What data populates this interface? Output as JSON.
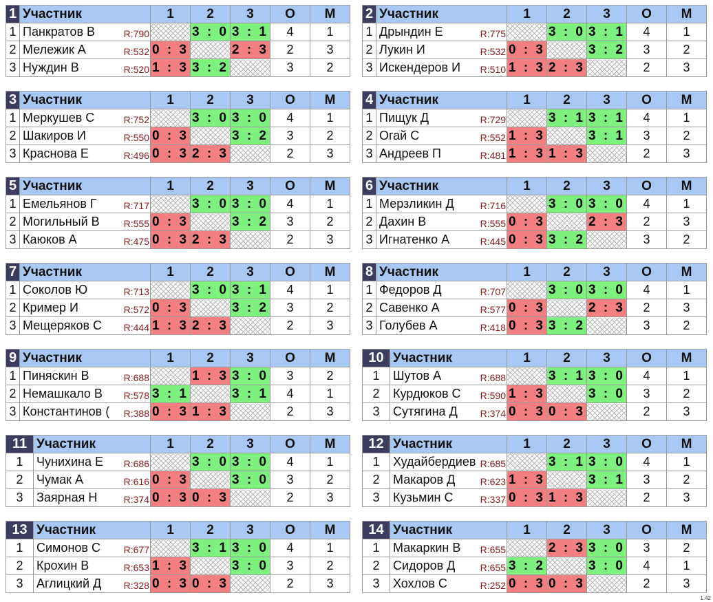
{
  "header": {
    "participant": "Участник",
    "col1": "1",
    "col2": "2",
    "col3": "3",
    "o": "О",
    "m": "М"
  },
  "groups": [
    {
      "id": "1",
      "players": [
        {
          "n": "1",
          "name": "Панкратов В",
          "rating": "R:790",
          "scores": [
            null,
            "3 : 0",
            "3 : 1"
          ],
          "o": "4",
          "m": "1"
        },
        {
          "n": "2",
          "name": "Мележик А",
          "rating": "R:532",
          "scores": [
            "0 : 3",
            null,
            "2 : 3"
          ],
          "o": "2",
          "m": "3"
        },
        {
          "n": "3",
          "name": "Нуждин В",
          "rating": "R:520",
          "scores": [
            "1 : 3",
            "3 : 2",
            null
          ],
          "o": "3",
          "m": "2"
        }
      ]
    },
    {
      "id": "2",
      "players": [
        {
          "n": "1",
          "name": "Дрындин Е",
          "rating": "R:775",
          "scores": [
            null,
            "3 : 0",
            "3 : 1"
          ],
          "o": "4",
          "m": "1"
        },
        {
          "n": "2",
          "name": "Лукин И",
          "rating": "R:532",
          "scores": [
            "0 : 3",
            null,
            "3 : 2"
          ],
          "o": "3",
          "m": "2"
        },
        {
          "n": "3",
          "name": "Искендеров И",
          "rating": "R:510",
          "scores": [
            "1 : 3",
            "2 : 3",
            null
          ],
          "o": "2",
          "m": "3"
        }
      ]
    },
    {
      "id": "3",
      "players": [
        {
          "n": "1",
          "name": "Меркушев С",
          "rating": "R:752",
          "scores": [
            null,
            "3 : 0",
            "3 : 0"
          ],
          "o": "4",
          "m": "1"
        },
        {
          "n": "2",
          "name": "Шакиров И",
          "rating": "R:550",
          "scores": [
            "0 : 3",
            null,
            "3 : 2"
          ],
          "o": "3",
          "m": "2"
        },
        {
          "n": "3",
          "name": "Краснова Е",
          "rating": "R:496",
          "scores": [
            "0 : 3",
            "2 : 3",
            null
          ],
          "o": "2",
          "m": "3"
        }
      ]
    },
    {
      "id": "4",
      "players": [
        {
          "n": "1",
          "name": "Пищук Д",
          "rating": "R:729",
          "scores": [
            null,
            "3 : 1",
            "3 : 1"
          ],
          "o": "4",
          "m": "1"
        },
        {
          "n": "2",
          "name": "Огай С",
          "rating": "R:552",
          "scores": [
            "1 : 3",
            null,
            "3 : 1"
          ],
          "o": "3",
          "m": "2"
        },
        {
          "n": "3",
          "name": "Андреев П",
          "rating": "R:481",
          "scores": [
            "1 : 3",
            "1 : 3",
            null
          ],
          "o": "2",
          "m": "3"
        }
      ]
    },
    {
      "id": "5",
      "players": [
        {
          "n": "1",
          "name": "Емельянов Г",
          "rating": "R:717",
          "scores": [
            null,
            "3 : 0",
            "3 : 0"
          ],
          "o": "4",
          "m": "1"
        },
        {
          "n": "2",
          "name": "Могильный В",
          "rating": "R:555",
          "scores": [
            "0 : 3",
            null,
            "3 : 2"
          ],
          "o": "3",
          "m": "2"
        },
        {
          "n": "3",
          "name": "Каюков А",
          "rating": "R:475",
          "scores": [
            "0 : 3",
            "2 : 3",
            null
          ],
          "o": "2",
          "m": "3"
        }
      ]
    },
    {
      "id": "6",
      "players": [
        {
          "n": "1",
          "name": "Мерзликин Д",
          "rating": "R:716",
          "scores": [
            null,
            "3 : 0",
            "3 : 0"
          ],
          "o": "4",
          "m": "1"
        },
        {
          "n": "2",
          "name": "Дахин В",
          "rating": "R:555",
          "scores": [
            "0 : 3",
            null,
            "2 : 3"
          ],
          "o": "2",
          "m": "3"
        },
        {
          "n": "3",
          "name": "Игнатенко А",
          "rating": "R:445",
          "scores": [
            "0 : 3",
            "3 : 2",
            null
          ],
          "o": "3",
          "m": "2"
        }
      ]
    },
    {
      "id": "7",
      "players": [
        {
          "n": "1",
          "name": "Соколов Ю",
          "rating": "R:713",
          "scores": [
            null,
            "3 : 0",
            "3 : 1"
          ],
          "o": "4",
          "m": "1"
        },
        {
          "n": "2",
          "name": "Кример И",
          "rating": "R:572",
          "scores": [
            "0 : 3",
            null,
            "3 : 2"
          ],
          "o": "3",
          "m": "2"
        },
        {
          "n": "3",
          "name": "Мещеряков С",
          "rating": "R:444",
          "scores": [
            "1 : 3",
            "2 : 3",
            null
          ],
          "o": "2",
          "m": "3"
        }
      ]
    },
    {
      "id": "8",
      "players": [
        {
          "n": "1",
          "name": "Федоров Д",
          "rating": "R:707",
          "scores": [
            null,
            "3 : 0",
            "3 : 0"
          ],
          "o": "4",
          "m": "1"
        },
        {
          "n": "2",
          "name": "Савенко А",
          "rating": "R:577",
          "scores": [
            "0 : 3",
            null,
            "2 : 3"
          ],
          "o": "2",
          "m": "3"
        },
        {
          "n": "3",
          "name": "Голубев А",
          "rating": "R:418",
          "scores": [
            "0 : 3",
            "3 : 2",
            null
          ],
          "o": "3",
          "m": "2"
        }
      ]
    },
    {
      "id": "9",
      "players": [
        {
          "n": "1",
          "name": "Пиняскин В",
          "rating": "R:688",
          "scores": [
            null,
            "1 : 3",
            "3 : 0"
          ],
          "o": "3",
          "m": "2"
        },
        {
          "n": "2",
          "name": "Немашкало В",
          "rating": "R:578",
          "scores": [
            "3 : 1",
            null,
            "3 : 1"
          ],
          "o": "4",
          "m": "1"
        },
        {
          "n": "3",
          "name": "Константинов (",
          "rating": "R:388",
          "scores": [
            "0 : 3",
            "1 : 3",
            null
          ],
          "o": "2",
          "m": "3"
        }
      ]
    },
    {
      "id": "10",
      "players": [
        {
          "n": "1",
          "name": "Шутов А",
          "rating": "R:688",
          "scores": [
            null,
            "3 : 1",
            "3 : 0"
          ],
          "o": "4",
          "m": "1"
        },
        {
          "n": "2",
          "name": "Курдюков С",
          "rating": "R:590",
          "scores": [
            "1 : 3",
            null,
            "3 : 0"
          ],
          "o": "3",
          "m": "2"
        },
        {
          "n": "3",
          "name": "Сутягина Д",
          "rating": "R:374",
          "scores": [
            "0 : 3",
            "0 : 3",
            null
          ],
          "o": "2",
          "m": "3"
        }
      ]
    },
    {
      "id": "11",
      "players": [
        {
          "n": "1",
          "name": "Чунихина Е",
          "rating": "R:686",
          "scores": [
            null,
            "3 : 0",
            "3 : 0"
          ],
          "o": "4",
          "m": "1"
        },
        {
          "n": "2",
          "name": "Чумак А",
          "rating": "R:616",
          "scores": [
            "0 : 3",
            null,
            "3 : 0"
          ],
          "o": "3",
          "m": "2"
        },
        {
          "n": "3",
          "name": "Заярная Н",
          "rating": "R:374",
          "scores": [
            "0 : 3",
            "0 : 3",
            null
          ],
          "o": "2",
          "m": "3"
        }
      ]
    },
    {
      "id": "12",
      "players": [
        {
          "n": "1",
          "name": "Худайбердиев",
          "rating": "R:685",
          "scores": [
            null,
            "3 : 1",
            "3 : 0"
          ],
          "o": "4",
          "m": "1"
        },
        {
          "n": "2",
          "name": "Макаров Д",
          "rating": "R:623",
          "scores": [
            "1 : 3",
            null,
            "3 : 1"
          ],
          "o": "3",
          "m": "2"
        },
        {
          "n": "3",
          "name": "Кузьмин С",
          "rating": "R:337",
          "scores": [
            "0 : 3",
            "1 : 3",
            null
          ],
          "o": "2",
          "m": "3"
        }
      ]
    },
    {
      "id": "13",
      "players": [
        {
          "n": "1",
          "name": "Симонов С",
          "rating": "R:677",
          "scores": [
            null,
            "3 : 1",
            "3 : 0"
          ],
          "o": "4",
          "m": "1"
        },
        {
          "n": "2",
          "name": "Крохин В",
          "rating": "R:653",
          "scores": [
            "1 : 3",
            null,
            "3 : 0"
          ],
          "o": "3",
          "m": "2"
        },
        {
          "n": "3",
          "name": "Аглицкий Д",
          "rating": "R:328",
          "scores": [
            "0 : 3",
            "0 : 3",
            null
          ],
          "o": "2",
          "m": "3"
        }
      ]
    },
    {
      "id": "14",
      "players": [
        {
          "n": "1",
          "name": "Макаркин В",
          "rating": "R:655",
          "scores": [
            null,
            "2 : 3",
            "3 : 0"
          ],
          "o": "3",
          "m": "2"
        },
        {
          "n": "2",
          "name": "Сидоров Д",
          "rating": "R:655",
          "scores": [
            "3 : 2",
            null,
            "3 : 0"
          ],
          "o": "4",
          "m": "1"
        },
        {
          "n": "3",
          "name": "Хохлов С",
          "rating": "R:252",
          "scores": [
            "0 : 3",
            "0 : 3",
            null
          ],
          "o": "2",
          "m": "3"
        }
      ]
    }
  ],
  "version": "1.42",
  "colors": {
    "header": "#a6c8f2",
    "group_number": "#3c3c60",
    "win": "#7ef07e",
    "loss": "#f28080",
    "rating": "#8b1a1a"
  }
}
